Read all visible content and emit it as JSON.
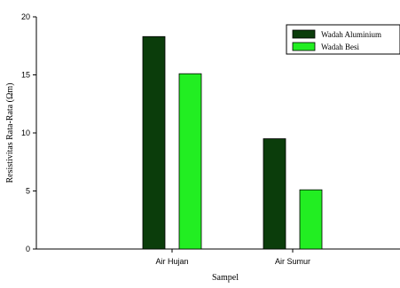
{
  "chart_data": {
    "type": "bar",
    "title": "",
    "xlabel": "Sampel",
    "ylabel": "Resistivitas Rata-Rata (Ωm)",
    "categories": [
      "Air Hujan",
      "Air Sumur"
    ],
    "series": [
      {
        "name": "Wadah Aluminium",
        "values": [
          18.3,
          9.5
        ],
        "color": "#0b3d0b"
      },
      {
        "name": "Wadah Besi",
        "values": [
          15.1,
          5.1
        ],
        "color": "#22ee22"
      }
    ],
    "ylim": [
      0,
      20
    ],
    "yticks": [
      "0",
      "5",
      "10",
      "15",
      "20"
    ],
    "grid": false,
    "legend_position": "top-right"
  }
}
